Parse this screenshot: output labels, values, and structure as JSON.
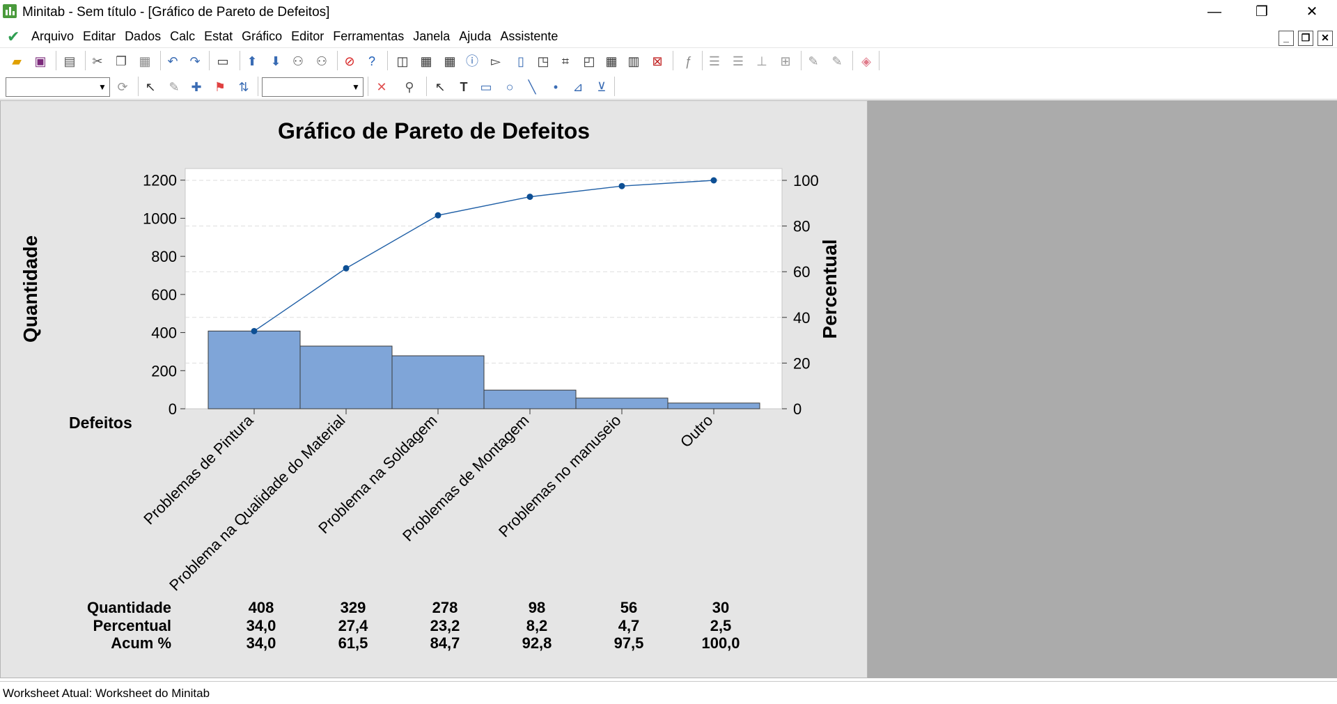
{
  "window": {
    "title": "Minitab - Sem título - [Gráfico de Pareto de Defeitos]",
    "minimize": "—",
    "restore": "❐",
    "close": "✕"
  },
  "menu": {
    "items": [
      "Arquivo",
      "Editar",
      "Dados",
      "Calc",
      "Estat",
      "Gráfico",
      "Editor",
      "Ferramentas",
      "Janela",
      "Ajuda",
      "Assistente"
    ]
  },
  "mdi": {
    "minimize": "_",
    "restore": "❐",
    "close": "✕"
  },
  "status": {
    "text": "Worksheet Atual: Worksheet do Minitab"
  },
  "colors": {
    "bar": "#7fa5d8",
    "line": "#1f5fa6",
    "point": "#0d4f94",
    "graph_bg": "#e5e5e5",
    "plot_bg": "#ffffff"
  },
  "chart_data": {
    "type": "bar",
    "title": "Gráfico de Pareto de Defeitos",
    "ylabel": "Quantidade",
    "y2label": "Percentual",
    "xlabel": "Defeitos",
    "categories": [
      "Problemas de Pintura",
      "Problema na Qualidade do Material",
      "Problema na Soldagem",
      "Problemas de Montagem",
      "Problemas no manuseio",
      "Outro"
    ],
    "values": [
      408,
      329,
      278,
      98,
      56,
      30
    ],
    "cumulative_percent": [
      34.0,
      61.5,
      84.7,
      92.8,
      97.5,
      100.0
    ],
    "ylim": [
      0,
      1199
    ],
    "y2lim": [
      0,
      100
    ],
    "yticks": [
      0,
      200,
      400,
      600,
      800,
      1000,
      1200
    ],
    "y2ticks": [
      0,
      20,
      40,
      60,
      80,
      100
    ],
    "grid": true,
    "table": {
      "row_labels": [
        "Quantidade",
        "Percentual",
        "Acum %"
      ],
      "rows": [
        [
          "408",
          "329",
          "278",
          "98",
          "56",
          "30"
        ],
        [
          "34,0",
          "27,4",
          "23,2",
          "8,2",
          "4,7",
          "2,5"
        ],
        [
          "34,0",
          "61,5",
          "84,7",
          "92,8",
          "97,5",
          "100,0"
        ]
      ]
    }
  }
}
